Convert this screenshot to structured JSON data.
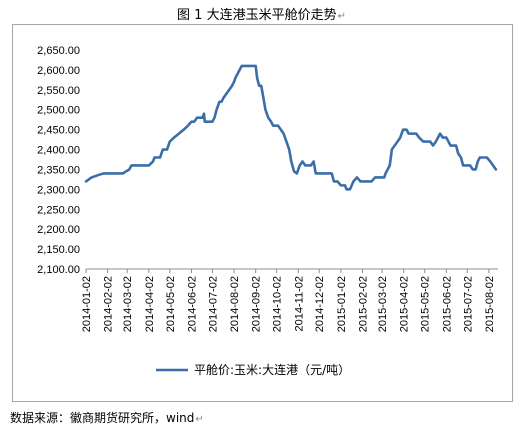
{
  "figure": {
    "title": "图 1  大连港玉米平舱价走势",
    "source": "数据来源：徽商期货研究所，wind"
  },
  "chart_data": {
    "type": "line",
    "title": "",
    "xlabel": "",
    "ylabel": "",
    "ylim": [
      2100,
      2650
    ],
    "yticks": [
      "2,100.00",
      "2,150.00",
      "2,200.00",
      "2,250.00",
      "2,300.00",
      "2,350.00",
      "2,400.00",
      "2,450.00",
      "2,500.00",
      "2,550.00",
      "2,600.00",
      "2,650.00"
    ],
    "ytick_values": [
      2100,
      2150,
      2200,
      2250,
      2300,
      2350,
      2400,
      2450,
      2500,
      2550,
      2600,
      2650
    ],
    "xticks": [
      "2014-01-02",
      "2014-02-02",
      "2014-03-02",
      "2014-04-02",
      "2014-05-02",
      "2014-06-02",
      "2014-07-02",
      "2014-08-02",
      "2014-09-02",
      "2014-10-02",
      "2014-11-02",
      "2014-12-02",
      "2015-01-02",
      "2015-02-02",
      "2015-03-02",
      "2015-04-02",
      "2015-05-02",
      "2015-06-02",
      "2015-07-02",
      "2015-08-02"
    ],
    "x_range": [
      "2014-01-02",
      "2015-08-15"
    ],
    "grid": false,
    "legend": "bottom",
    "color": "#3b6ea8",
    "series": [
      {
        "name": "平舱价:玉米:大连港（元/吨）",
        "points": [
          [
            "2014-01-02",
            2320
          ],
          [
            "2014-01-06",
            2325
          ],
          [
            "2014-01-10",
            2330
          ],
          [
            "2014-01-18",
            2335
          ],
          [
            "2014-01-27",
            2340
          ],
          [
            "2014-02-15",
            2340
          ],
          [
            "2014-02-24",
            2340
          ],
          [
            "2014-02-28",
            2345
          ],
          [
            "2014-03-05",
            2350
          ],
          [
            "2014-03-08",
            2360
          ],
          [
            "2014-03-20",
            2360
          ],
          [
            "2014-04-02",
            2360
          ],
          [
            "2014-04-08",
            2370
          ],
          [
            "2014-04-10",
            2380
          ],
          [
            "2014-04-18",
            2380
          ],
          [
            "2014-04-22",
            2400
          ],
          [
            "2014-04-28",
            2400
          ],
          [
            "2014-05-02",
            2420
          ],
          [
            "2014-05-08",
            2430
          ],
          [
            "2014-05-15",
            2440
          ],
          [
            "2014-05-22",
            2450
          ],
          [
            "2014-05-28",
            2460
          ],
          [
            "2014-06-02",
            2470
          ],
          [
            "2014-06-06",
            2470
          ],
          [
            "2014-06-10",
            2480
          ],
          [
            "2014-06-18",
            2480
          ],
          [
            "2014-06-20",
            2490
          ],
          [
            "2014-06-21",
            2470
          ],
          [
            "2014-07-02",
            2470
          ],
          [
            "2014-07-05",
            2480
          ],
          [
            "2014-07-08",
            2500
          ],
          [
            "2014-07-12",
            2520
          ],
          [
            "2014-07-15",
            2520
          ],
          [
            "2014-07-18",
            2530
          ],
          [
            "2014-07-22",
            2540
          ],
          [
            "2014-07-26",
            2550
          ],
          [
            "2014-07-30",
            2560
          ],
          [
            "2014-08-02",
            2570
          ],
          [
            "2014-08-04",
            2580
          ],
          [
            "2014-08-07",
            2590
          ],
          [
            "2014-08-10",
            2600
          ],
          [
            "2014-08-13",
            2610
          ],
          [
            "2014-08-30",
            2610
          ],
          [
            "2014-09-02",
            2610
          ],
          [
            "2014-09-04",
            2580
          ],
          [
            "2014-09-07",
            2560
          ],
          [
            "2014-09-10",
            2560
          ],
          [
            "2014-09-13",
            2530
          ],
          [
            "2014-09-16",
            2500
          ],
          [
            "2014-09-20",
            2480
          ],
          [
            "2014-09-24",
            2470
          ],
          [
            "2014-09-27",
            2460
          ],
          [
            "2014-10-04",
            2460
          ],
          [
            "2014-10-08",
            2450
          ],
          [
            "2014-10-12",
            2440
          ],
          [
            "2014-10-16",
            2420
          ],
          [
            "2014-10-20",
            2400
          ],
          [
            "2014-10-23",
            2370
          ],
          [
            "2014-10-27",
            2345
          ],
          [
            "2014-10-31",
            2340
          ],
          [
            "2014-11-04",
            2360
          ],
          [
            "2014-11-08",
            2370
          ],
          [
            "2014-11-12",
            2360
          ],
          [
            "2014-11-20",
            2360
          ],
          [
            "2014-11-24",
            2370
          ],
          [
            "2014-11-27",
            2340
          ],
          [
            "2014-12-08",
            2340
          ],
          [
            "2014-12-20",
            2340
          ],
          [
            "2014-12-23",
            2320
          ],
          [
            "2014-12-28",
            2320
          ],
          [
            "2015-01-02",
            2310
          ],
          [
            "2015-01-08",
            2310
          ],
          [
            "2015-01-10",
            2300
          ],
          [
            "2015-01-15",
            2300
          ],
          [
            "2015-01-20",
            2320
          ],
          [
            "2015-01-25",
            2330
          ],
          [
            "2015-01-30",
            2320
          ],
          [
            "2015-02-15",
            2320
          ],
          [
            "2015-02-20",
            2330
          ],
          [
            "2015-03-05",
            2330
          ],
          [
            "2015-03-07",
            2340
          ],
          [
            "2015-03-10",
            2350
          ],
          [
            "2015-03-13",
            2360
          ],
          [
            "2015-03-16",
            2400
          ],
          [
            "2015-03-20",
            2410
          ],
          [
            "2015-03-24",
            2420
          ],
          [
            "2015-03-28",
            2430
          ],
          [
            "2015-04-01",
            2450
          ],
          [
            "2015-04-06",
            2450
          ],
          [
            "2015-04-09",
            2440
          ],
          [
            "2015-04-20",
            2440
          ],
          [
            "2015-04-24",
            2430
          ],
          [
            "2015-04-30",
            2420
          ],
          [
            "2015-05-10",
            2420
          ],
          [
            "2015-05-14",
            2410
          ],
          [
            "2015-05-18",
            2420
          ],
          [
            "2015-05-21",
            2430
          ],
          [
            "2015-05-24",
            2440
          ],
          [
            "2015-05-28",
            2430
          ],
          [
            "2015-06-02",
            2430
          ],
          [
            "2015-06-05",
            2420
          ],
          [
            "2015-06-08",
            2410
          ],
          [
            "2015-06-16",
            2410
          ],
          [
            "2015-06-19",
            2390
          ],
          [
            "2015-06-23",
            2380
          ],
          [
            "2015-06-26",
            2360
          ],
          [
            "2015-07-06",
            2360
          ],
          [
            "2015-07-10",
            2350
          ],
          [
            "2015-07-14",
            2350
          ],
          [
            "2015-07-17",
            2370
          ],
          [
            "2015-07-20",
            2380
          ],
          [
            "2015-07-30",
            2380
          ],
          [
            "2015-08-04",
            2370
          ],
          [
            "2015-08-08",
            2360
          ],
          [
            "2015-08-12",
            2350
          ]
        ]
      }
    ]
  }
}
